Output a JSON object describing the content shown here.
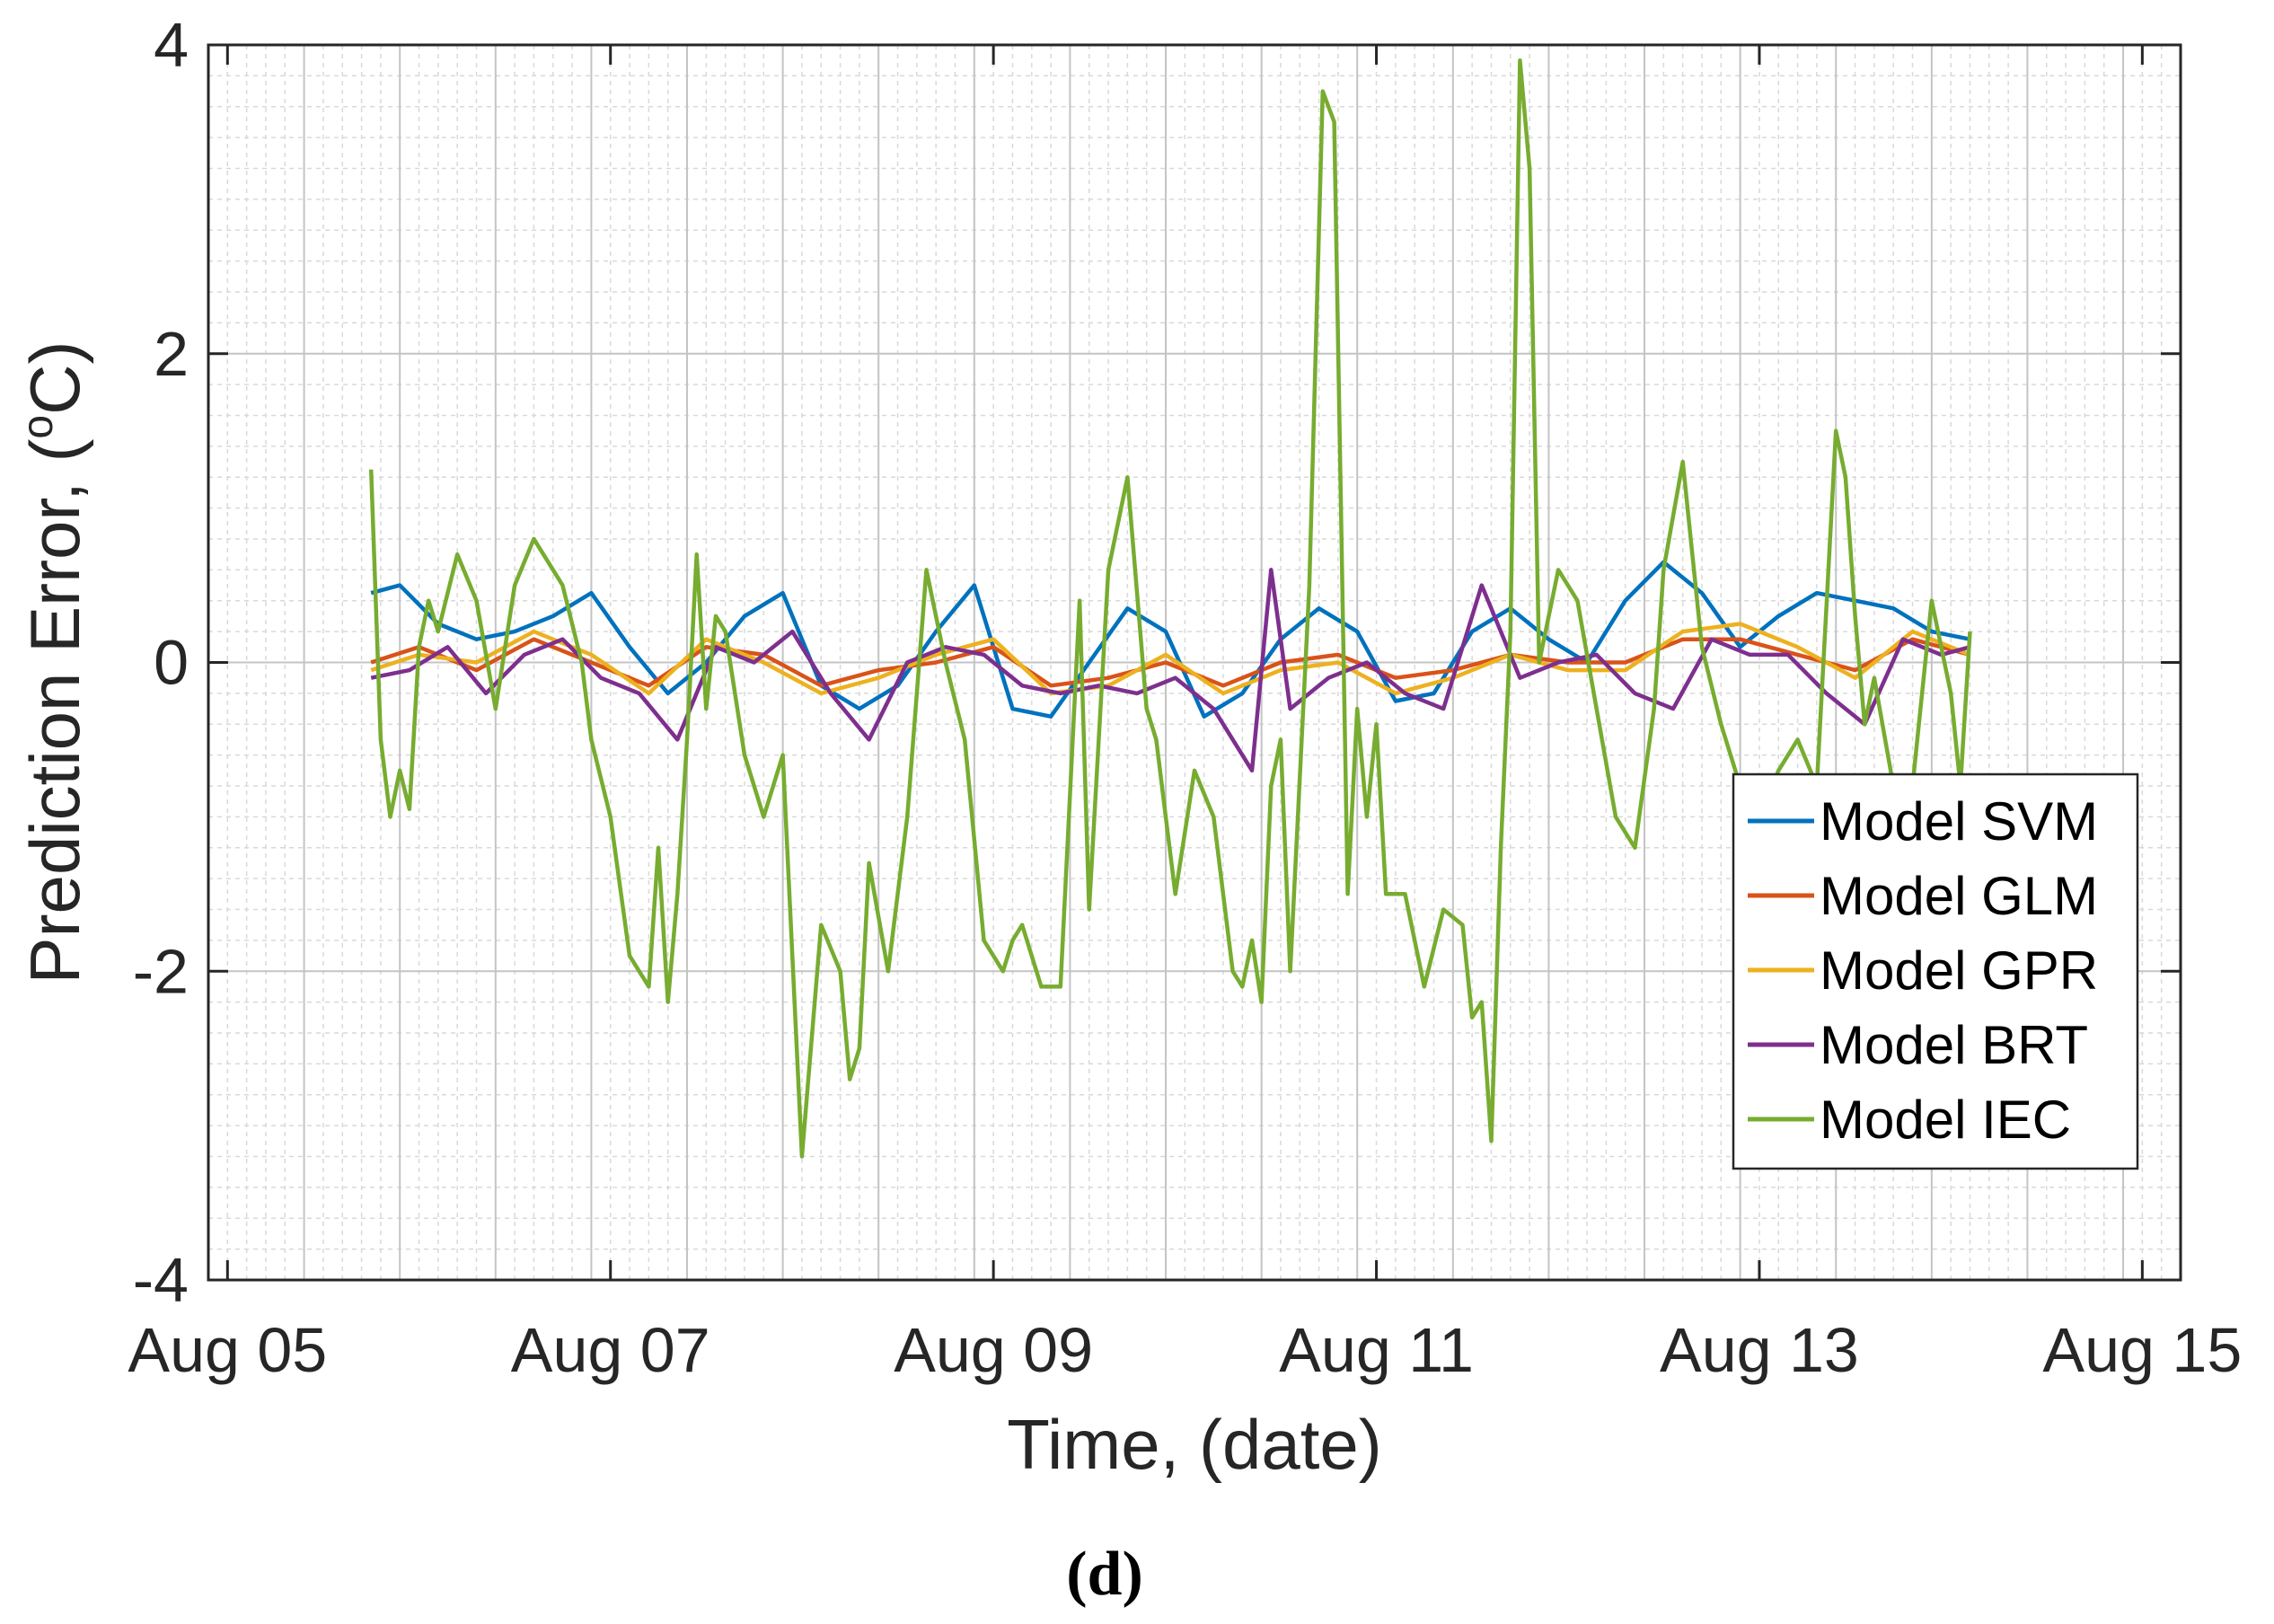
{
  "chart_data": {
    "type": "line",
    "title": "",
    "panel_label": "(d)",
    "xlabel": "Time, (date)",
    "ylabel": "Prediction Error, (°C)",
    "ylabel_parts": {
      "pre": "Prediction Error, (",
      "sup": "o",
      "post": "C)"
    },
    "x_range_days": [
      0,
      10.3
    ],
    "x_ticks": [
      {
        "day": 0.1,
        "label": "Aug 05"
      },
      {
        "day": 2.1,
        "label": "Aug 07"
      },
      {
        "day": 4.1,
        "label": "Aug 09"
      },
      {
        "day": 6.1,
        "label": "Aug 11"
      },
      {
        "day": 8.1,
        "label": "Aug 13"
      },
      {
        "day": 10.1,
        "label": "Aug 15"
      }
    ],
    "ylim": [
      -4,
      4
    ],
    "y_ticks": [
      4,
      2,
      0,
      -2,
      -4
    ],
    "grid": true,
    "minor_grid": true,
    "legend_position": "right-center",
    "series": [
      {
        "name": "Model SVM",
        "color": "#0072BD",
        "x": [
          0.85,
          1.0,
          1.2,
          1.4,
          1.6,
          1.8,
          2.0,
          2.2,
          2.4,
          2.6,
          2.8,
          3.0,
          3.2,
          3.4,
          3.6,
          3.8,
          4.0,
          4.2,
          4.4,
          4.6,
          4.8,
          5.0,
          5.2,
          5.4,
          5.6,
          5.8,
          6.0,
          6.2,
          6.4,
          6.6,
          6.8,
          7.0,
          7.2,
          7.4,
          7.6,
          7.8,
          8.0,
          8.2,
          8.4,
          8.6,
          8.8,
          9.0,
          9.2
        ],
        "values": [
          0.45,
          0.5,
          0.25,
          0.15,
          0.2,
          0.3,
          0.45,
          0.1,
          -0.2,
          0.0,
          0.3,
          0.45,
          -0.15,
          -0.3,
          -0.15,
          0.2,
          0.5,
          -0.3,
          -0.35,
          0.0,
          0.35,
          0.2,
          -0.35,
          -0.2,
          0.15,
          0.35,
          0.2,
          -0.25,
          -0.2,
          0.2,
          0.35,
          0.15,
          0.0,
          0.4,
          0.65,
          0.45,
          0.1,
          0.3,
          0.45,
          0.4,
          0.35,
          0.2,
          0.15
        ]
      },
      {
        "name": "Model GLM",
        "color": "#D95319",
        "x": [
          0.85,
          1.1,
          1.4,
          1.7,
          2.0,
          2.3,
          2.6,
          2.9,
          3.2,
          3.5,
          3.8,
          4.1,
          4.4,
          4.7,
          5.0,
          5.3,
          5.6,
          5.9,
          6.2,
          6.5,
          6.8,
          7.1,
          7.4,
          7.7,
          8.0,
          8.3,
          8.6,
          8.9,
          9.2
        ],
        "values": [
          0.0,
          0.1,
          -0.05,
          0.15,
          0.0,
          -0.15,
          0.1,
          0.05,
          -0.15,
          -0.05,
          0.0,
          0.1,
          -0.15,
          -0.1,
          0.0,
          -0.15,
          0.0,
          0.05,
          -0.1,
          -0.05,
          0.05,
          0.0,
          0.0,
          0.15,
          0.15,
          0.05,
          -0.05,
          0.15,
          0.05
        ]
      },
      {
        "name": "Model GPR",
        "color": "#EDB120",
        "x": [
          0.85,
          1.1,
          1.4,
          1.7,
          2.0,
          2.3,
          2.6,
          2.9,
          3.2,
          3.5,
          3.8,
          4.1,
          4.4,
          4.7,
          5.0,
          5.3,
          5.6,
          5.9,
          6.2,
          6.5,
          6.8,
          7.1,
          7.4,
          7.7,
          8.0,
          8.3,
          8.6,
          8.9,
          9.2
        ],
        "values": [
          -0.05,
          0.05,
          0.0,
          0.2,
          0.05,
          -0.2,
          0.15,
          0.0,
          -0.2,
          -0.1,
          0.05,
          0.15,
          -0.2,
          -0.15,
          0.05,
          -0.2,
          -0.05,
          0.0,
          -0.2,
          -0.1,
          0.05,
          -0.05,
          -0.05,
          0.2,
          0.25,
          0.1,
          -0.1,
          0.2,
          0.05
        ]
      },
      {
        "name": "Model BRT",
        "color": "#7E2F8E",
        "x": [
          0.85,
          1.05,
          1.25,
          1.45,
          1.65,
          1.85,
          2.05,
          2.25,
          2.45,
          2.65,
          2.85,
          3.05,
          3.25,
          3.45,
          3.65,
          3.85,
          4.05,
          4.25,
          4.45,
          4.65,
          4.85,
          5.05,
          5.25,
          5.45,
          5.55,
          5.65,
          5.85,
          6.05,
          6.25,
          6.45,
          6.65,
          6.85,
          7.05,
          7.25,
          7.45,
          7.65,
          7.85,
          8.05,
          8.25,
          8.45,
          8.65,
          8.85,
          9.05,
          9.2
        ],
        "values": [
          -0.1,
          -0.05,
          0.1,
          -0.2,
          0.05,
          0.15,
          -0.1,
          -0.2,
          -0.5,
          0.1,
          0.0,
          0.2,
          -0.2,
          -0.5,
          0.0,
          0.1,
          0.05,
          -0.15,
          -0.2,
          -0.15,
          -0.2,
          -0.1,
          -0.3,
          -0.7,
          0.6,
          -0.3,
          -0.1,
          0.0,
          -0.2,
          -0.3,
          0.5,
          -0.1,
          0.0,
          0.05,
          -0.2,
          -0.3,
          0.15,
          0.05,
          0.05,
          -0.2,
          -0.4,
          0.15,
          0.05,
          0.1
        ]
      },
      {
        "name": "Model IEC",
        "color": "#77AC30",
        "x": [
          0.85,
          0.9,
          0.95,
          1.0,
          1.05,
          1.1,
          1.15,
          1.2,
          1.3,
          1.4,
          1.5,
          1.6,
          1.7,
          1.8,
          1.85,
          1.95,
          2.0,
          2.1,
          2.2,
          2.3,
          2.35,
          2.4,
          2.45,
          2.5,
          2.55,
          2.6,
          2.65,
          2.7,
          2.8,
          2.9,
          3.0,
          3.1,
          3.2,
          3.3,
          3.35,
          3.4,
          3.45,
          3.55,
          3.65,
          3.75,
          3.85,
          3.95,
          4.05,
          4.15,
          4.2,
          4.25,
          4.35,
          4.45,
          4.55,
          4.6,
          4.7,
          4.8,
          4.9,
          4.95,
          5.0,
          5.05,
          5.15,
          5.25,
          5.35,
          5.4,
          5.45,
          5.5,
          5.55,
          5.6,
          5.65,
          5.75,
          5.82,
          5.88,
          5.95,
          6.0,
          6.05,
          6.1,
          6.15,
          6.25,
          6.35,
          6.45,
          6.55,
          6.6,
          6.65,
          6.7,
          6.75,
          6.8,
          6.85,
          6.9,
          6.95,
          7.05,
          7.15,
          7.25,
          7.35,
          7.45,
          7.55,
          7.6,
          7.7,
          7.8,
          7.9,
          8.0,
          8.1,
          8.2,
          8.3,
          8.4,
          8.5,
          8.55,
          8.6,
          8.65,
          8.7,
          8.8,
          8.9,
          9.0,
          9.1,
          9.15,
          9.2
        ],
        "values": [
          1.25,
          -0.5,
          -1.0,
          -0.7,
          -0.95,
          0.1,
          0.4,
          0.2,
          0.7,
          0.4,
          -0.3,
          0.5,
          0.8,
          0.6,
          0.5,
          0.0,
          -0.5,
          -1.0,
          -1.9,
          -2.1,
          -1.2,
          -2.2,
          -1.5,
          -0.5,
          0.7,
          -0.3,
          0.3,
          0.2,
          -0.6,
          -1.0,
          -0.6,
          -3.2,
          -1.7,
          -2.0,
          -2.7,
          -2.5,
          -1.3,
          -2.0,
          -1.0,
          0.6,
          0.0,
          -0.5,
          -1.8,
          -2.0,
          -1.8,
          -1.7,
          -2.1,
          -2.1,
          0.4,
          -1.6,
          0.6,
          1.2,
          -0.3,
          -0.5,
          -1.0,
          -1.5,
          -0.7,
          -1.0,
          -2.0,
          -2.1,
          -1.8,
          -2.2,
          -0.8,
          -0.5,
          -2.0,
          0.5,
          3.7,
          3.5,
          -1.5,
          -0.3,
          -1.0,
          -0.4,
          -1.5,
          -1.5,
          -2.1,
          -1.6,
          -1.7,
          -2.3,
          -2.2,
          -3.1,
          -1.2,
          0.2,
          3.9,
          3.2,
          0.0,
          0.6,
          0.4,
          -0.3,
          -1.0,
          -1.2,
          -0.3,
          0.6,
          1.3,
          0.1,
          -0.4,
          -0.8,
          -1.0,
          -0.7,
          -0.5,
          -0.8,
          1.5,
          1.2,
          0.3,
          -0.4,
          -0.1,
          -0.8,
          -0.8,
          0.4,
          -0.2,
          -0.8,
          0.2
        ]
      }
    ]
  }
}
